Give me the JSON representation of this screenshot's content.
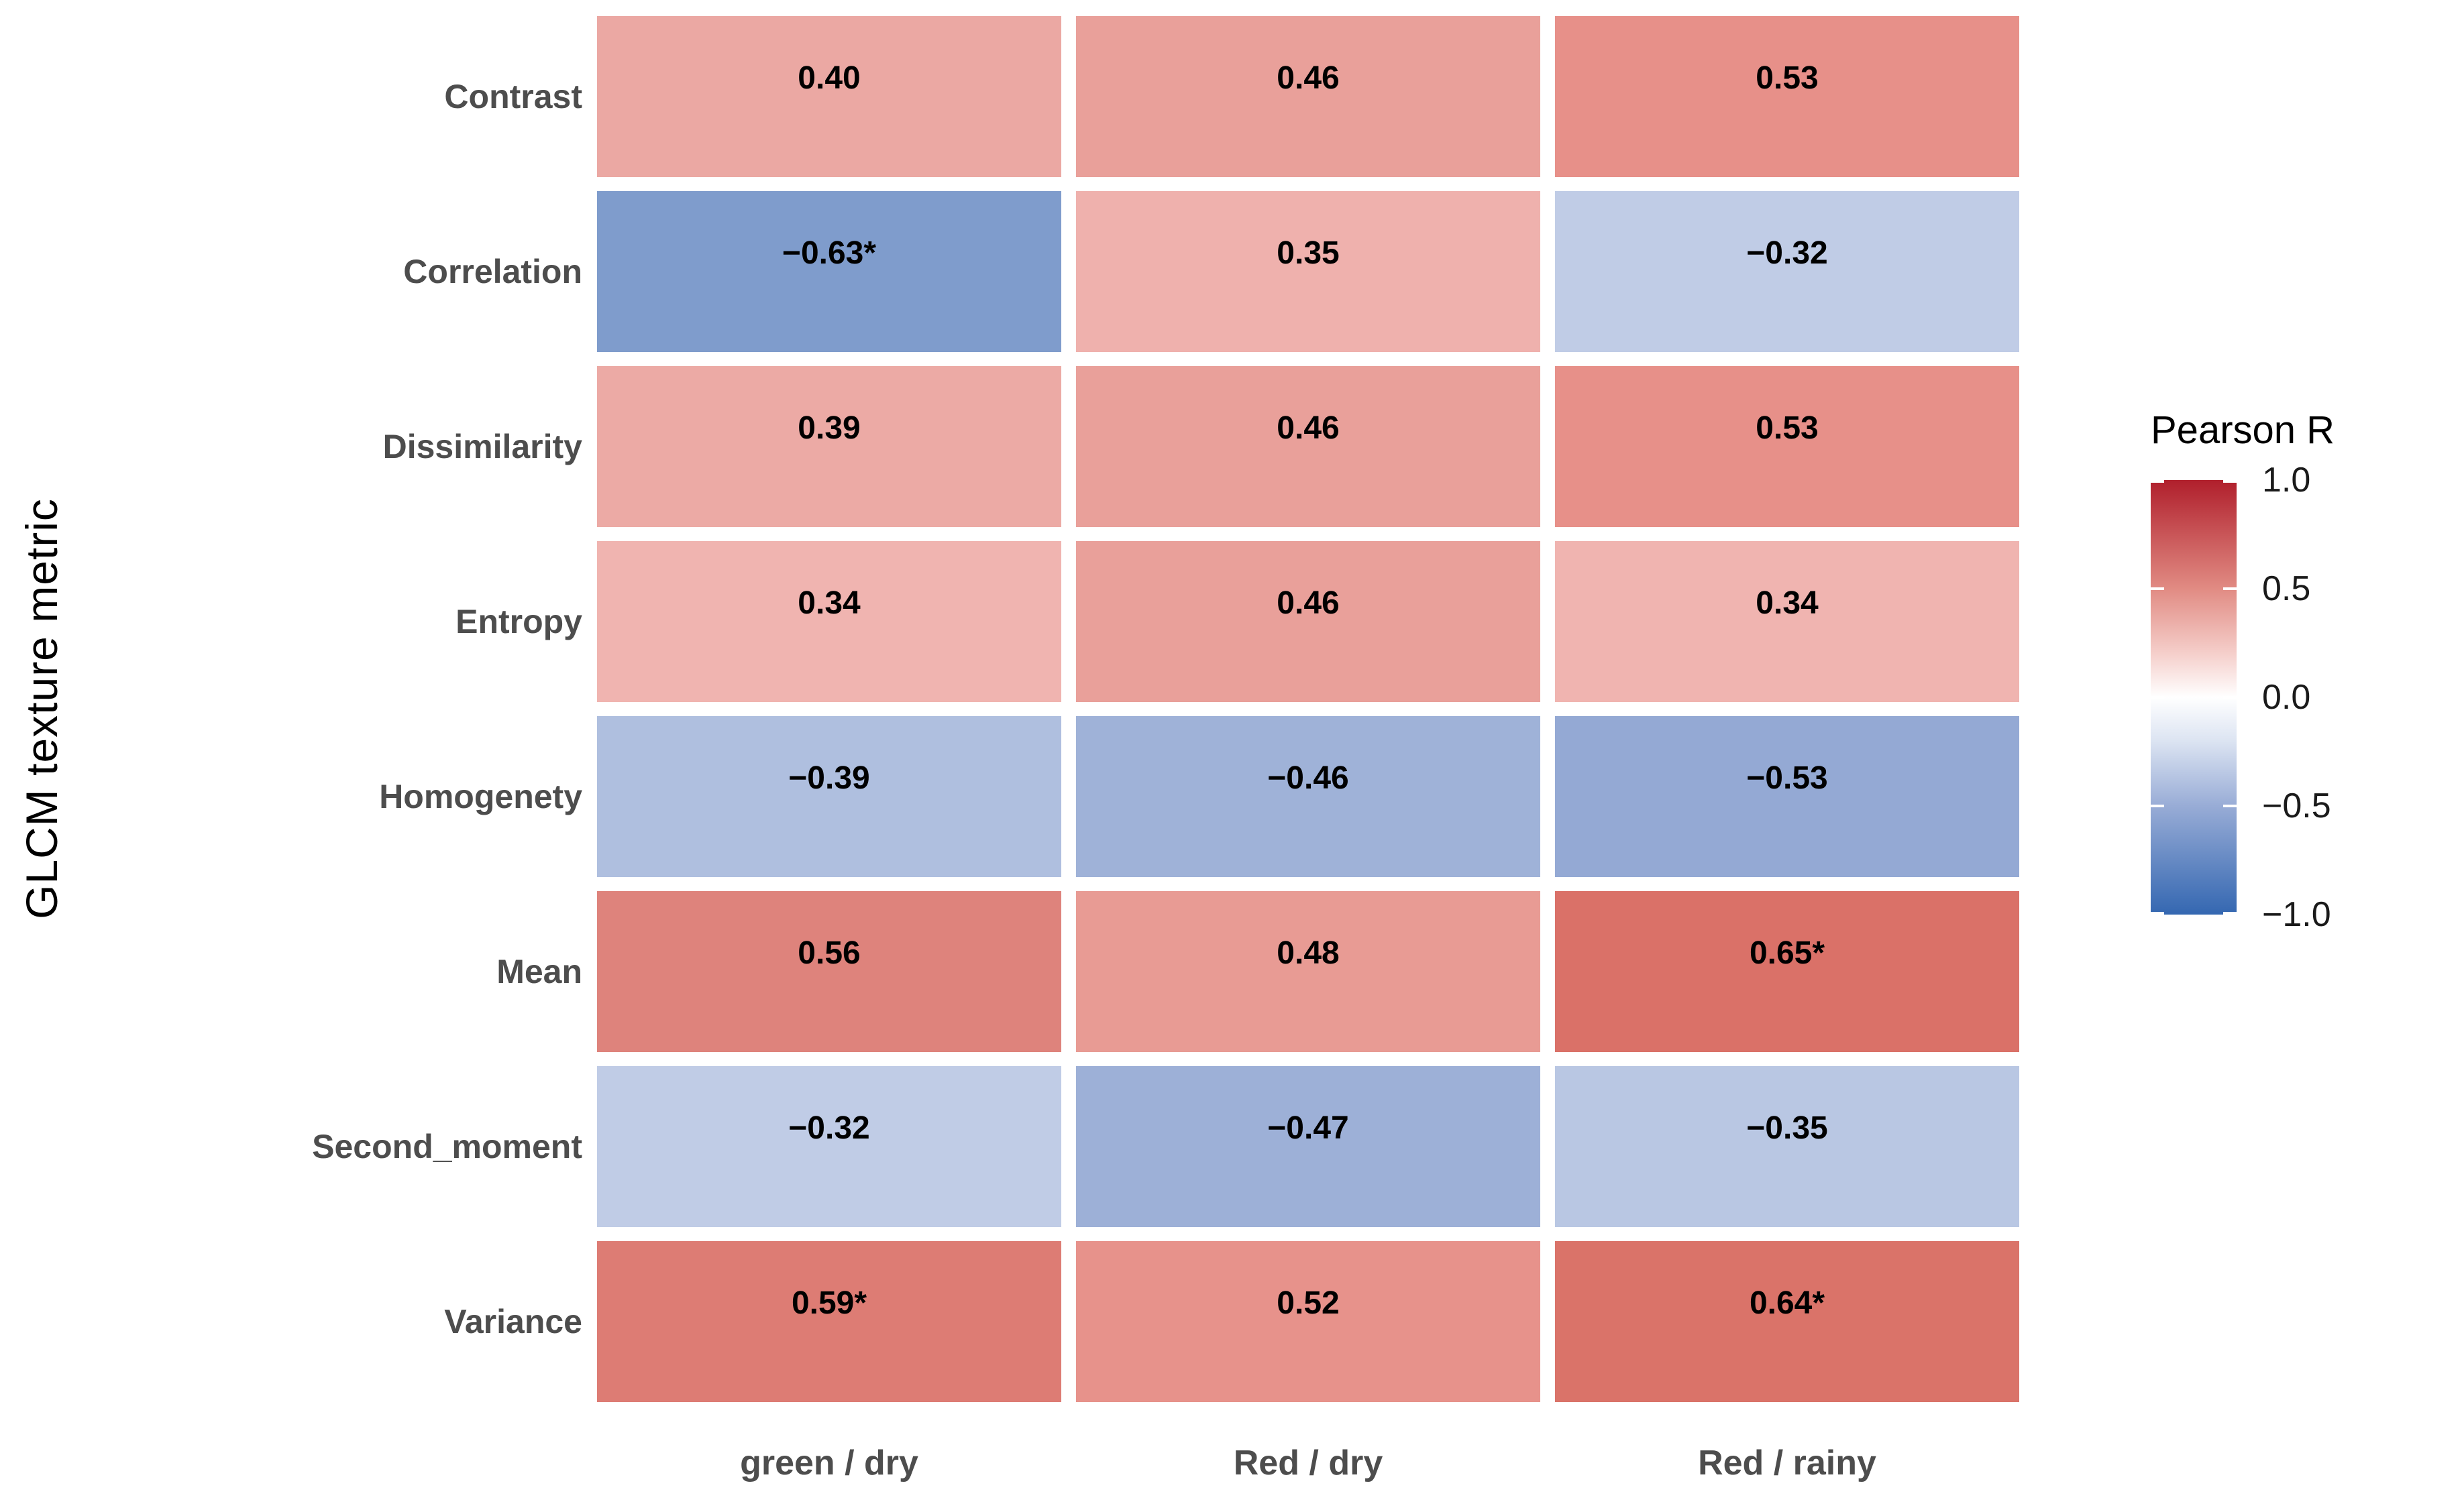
{
  "chart_data": {
    "type": "heatmap",
    "title": "",
    "xlabel": "",
    "ylabel": "GLCM texture metric",
    "columns": [
      "green / dry",
      "Red / dry",
      "Red / rainy"
    ],
    "rows": [
      "Contrast",
      "Correlation",
      "Dissimilarity",
      "Entropy",
      "Homogenety",
      "Mean",
      "Second_moment",
      "Variance"
    ],
    "values": [
      [
        0.4,
        0.46,
        0.53
      ],
      [
        -0.63,
        0.35,
        -0.32
      ],
      [
        0.39,
        0.46,
        0.53
      ],
      [
        0.34,
        0.46,
        0.34
      ],
      [
        -0.39,
        -0.46,
        -0.53
      ],
      [
        0.56,
        0.48,
        0.65
      ],
      [
        -0.32,
        -0.47,
        -0.35
      ],
      [
        0.59,
        0.52,
        0.64
      ]
    ],
    "labels": [
      [
        "0.40",
        "0.46",
        "0.53"
      ],
      [
        "−0.63*",
        "0.35",
        "−0.32"
      ],
      [
        "0.39",
        "0.46",
        "0.53"
      ],
      [
        "0.34",
        "0.46",
        "0.34"
      ],
      [
        "−0.39",
        "−0.46",
        "−0.53"
      ],
      [
        "0.56",
        "0.48",
        "0.65*"
      ],
      [
        "−0.32",
        "−0.47",
        "−0.35"
      ],
      [
        "0.59*",
        "0.52",
        "0.64*"
      ]
    ],
    "significance_marker": "*",
    "cell_colors": [
      [
        "#EBA8A3",
        "#E9A09A",
        "#E79089"
      ],
      [
        "#7F9CCC",
        "#EFB1AD",
        "#C0CCE6"
      ],
      [
        "#ECAAA5",
        "#E9A09A",
        "#E79089"
      ],
      [
        "#F0B4B0",
        "#E9A09A",
        "#F0B4B0"
      ],
      [
        "#AFBFDF",
        "#9FB2D8",
        "#94A9D4"
      ],
      [
        "#DE837C",
        "#E89B94",
        "#DA7168"
      ],
      [
        "#C0CCE6",
        "#9DB0D7",
        "#B9C7E3"
      ],
      [
        "#DD7C74",
        "#E7928B",
        "#DA7369"
      ]
    ],
    "grid": true,
    "legend": {
      "title": "Pearson R",
      "position": "right",
      "range": [
        -1.0,
        1.0
      ],
      "ticks": [
        "1.0",
        "0.5",
        "0.0",
        "−0.5",
        "−1.0"
      ],
      "gradient_stops": [
        {
          "pos": 0.0,
          "color": "#B01F2C"
        },
        {
          "pos": 0.25,
          "color": "#E18B83"
        },
        {
          "pos": 0.4,
          "color": "#F5CFCB"
        },
        {
          "pos": 0.5,
          "color": "#FFFFFF"
        },
        {
          "pos": 0.6,
          "color": "#DCE4F2"
        },
        {
          "pos": 0.75,
          "color": "#98ACD6"
        },
        {
          "pos": 1.0,
          "color": "#3467B1"
        }
      ]
    },
    "text_colors": {
      "axis_label": "#000000",
      "tick_label": "#4d4d4d",
      "cell_value": "#000000",
      "legend_text": "#1a1a1a"
    }
  }
}
